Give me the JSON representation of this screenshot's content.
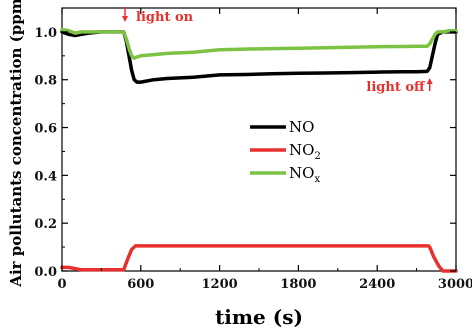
{
  "chart_data": {
    "type": "line",
    "title": "",
    "xlabel": "time (s)",
    "ylabel": "Air pollutants concentration (ppm)",
    "xlim": [
      0,
      3000
    ],
    "ylim": [
      0,
      1.1
    ],
    "xticks": [
      0,
      600,
      1200,
      1800,
      2400,
      3000
    ],
    "yticks": [
      0.0,
      0.2,
      0.4,
      0.6,
      0.8,
      1.0
    ],
    "xtick_labels": [
      "0",
      "600",
      "1200",
      "1800",
      "2400",
      "3000"
    ],
    "ytick_labels": [
      "0.0",
      "0.2",
      "0.4",
      "0.6",
      "0.8",
      "1.0"
    ],
    "grid": false,
    "legend_position": "center",
    "series": [
      {
        "name": "NO",
        "legend_base": "NO",
        "legend_sub": "",
        "color": "#000000",
        "x": [
          0,
          50,
          100,
          150,
          200,
          300,
          400,
          470,
          490,
          510,
          530,
          550,
          570,
          600,
          700,
          800,
          1000,
          1200,
          1400,
          1600,
          1800,
          2000,
          2200,
          2400,
          2600,
          2700,
          2780,
          2800,
          2820,
          2840,
          2860,
          2900,
          2950,
          3000
        ],
        "y": [
          1.0,
          0.99,
          0.985,
          0.99,
          0.995,
          1.0,
          1.0,
          1.0,
          0.96,
          0.9,
          0.84,
          0.8,
          0.79,
          0.79,
          0.8,
          0.805,
          0.81,
          0.82,
          0.822,
          0.825,
          0.827,
          0.828,
          0.83,
          0.832,
          0.833,
          0.833,
          0.835,
          0.85,
          0.9,
          0.95,
          0.99,
          1.0,
          1.0,
          1.0
        ]
      },
      {
        "name": "NO2",
        "legend_base": "NO",
        "legend_sub": "2",
        "color": "#e8312f",
        "x": [
          0,
          50,
          100,
          150,
          200,
          300,
          400,
          470,
          500,
          530,
          560,
          600,
          900,
          1200,
          1500,
          1800,
          2100,
          2400,
          2700,
          2790,
          2800,
          2830,
          2870,
          2900,
          3000
        ],
        "y": [
          0.015,
          0.015,
          0.01,
          0.005,
          0.005,
          0.005,
          0.005,
          0.005,
          0.05,
          0.09,
          0.105,
          0.105,
          0.105,
          0.105,
          0.105,
          0.105,
          0.105,
          0.105,
          0.105,
          0.105,
          0.1,
          0.06,
          0.02,
          0.0,
          0.0
        ]
      },
      {
        "name": "NOx",
        "legend_base": "NO",
        "legend_sub": "x",
        "color": "#7cc243",
        "x": [
          0,
          50,
          100,
          150,
          200,
          300,
          400,
          470,
          490,
          510,
          530,
          550,
          570,
          600,
          700,
          800,
          1000,
          1200,
          1400,
          1600,
          1800,
          2000,
          2200,
          2400,
          2600,
          2700,
          2780,
          2800,
          2820,
          2840,
          2860,
          2900,
          2950,
          3000
        ],
        "y": [
          1.01,
          1.005,
          0.995,
          1.0,
          1.0,
          1.0,
          1.0,
          1.0,
          0.97,
          0.93,
          0.9,
          0.89,
          0.895,
          0.9,
          0.905,
          0.91,
          0.915,
          0.925,
          0.928,
          0.93,
          0.932,
          0.934,
          0.936,
          0.938,
          0.939,
          0.94,
          0.94,
          0.95,
          0.97,
          0.99,
          1.0,
          1.0,
          1.005,
          1.005
        ]
      }
    ],
    "annotations": [
      {
        "text": "light on",
        "color": "#e8312f",
        "arrow_x": 480,
        "arrow_direction": "down"
      },
      {
        "text": "light off",
        "color": "#e8312f",
        "arrow_x": 2800,
        "arrow_direction": "up"
      }
    ]
  }
}
